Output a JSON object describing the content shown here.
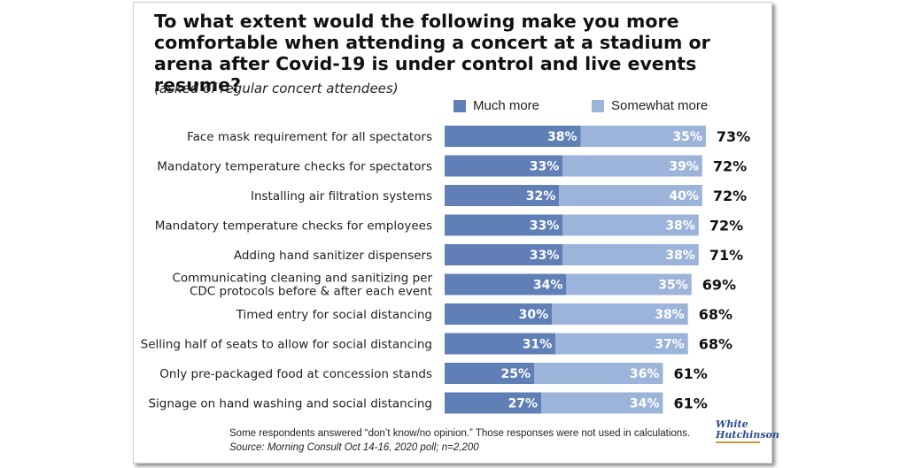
{
  "chart_data": {
    "type": "bar",
    "orientation": "horizontal",
    "stacked": true,
    "title": "To what extent would the following make you more comfortable when attending a concert at a stadium or arena after Covid-19 is under control and live events resume?",
    "subtitle": "(asked of regular concert attendees)",
    "legend_position": "top-right",
    "grid": false,
    "categories": [
      "Face mask requirement for all spectators",
      "Mandatory temperature checks for spectators",
      "Installing air filtration systems",
      "Mandatory temperature checks for employees",
      "Adding hand sanitizer dispensers",
      "Communicating cleaning and sanitizing per CDC protocols before & after each event",
      "Timed entry for social distancing",
      "Selling half of seats to allow for social distancing",
      "Only pre-packaged food at concession stands",
      "Signage on hand washing and social distancing"
    ],
    "category_lines": [
      [
        "Face mask requirement for all spectators"
      ],
      [
        "Mandatory temperature checks for spectators"
      ],
      [
        "Installing air filtration systems"
      ],
      [
        "Mandatory temperature checks for employees"
      ],
      [
        "Adding hand sanitizer dispensers"
      ],
      [
        "Communicating cleaning and sanitizing per",
        "CDC protocols before & after each event"
      ],
      [
        "Timed entry for social distancing"
      ],
      [
        "Selling half of seats to allow for social distancing"
      ],
      [
        "Only pre-packaged food at concession stands"
      ],
      [
        "Signage on hand washing and social distancing"
      ]
    ],
    "series": [
      {
        "name": "Much more",
        "color": "#5f7fb6",
        "values": [
          38,
          33,
          32,
          33,
          33,
          34,
          30,
          31,
          25,
          27
        ]
      },
      {
        "name": "Somewhat more",
        "color": "#9db4da",
        "values": [
          35,
          39,
          40,
          38,
          38,
          35,
          38,
          37,
          36,
          34
        ]
      }
    ],
    "totals": [
      73,
      72,
      72,
      72,
      71,
      69,
      68,
      68,
      61,
      61
    ],
    "xlim": [
      0,
      100
    ],
    "value_suffix": "%"
  },
  "notes": {
    "footnote": "Some respondents answered “don’t know/no opinion.” Those responses were not used in calculations.",
    "source": "Source: Morning Consult Oct 14-16, 2020 poll; n=2,200"
  },
  "logo": {
    "line1": "White",
    "line2": "Hutchinson"
  }
}
